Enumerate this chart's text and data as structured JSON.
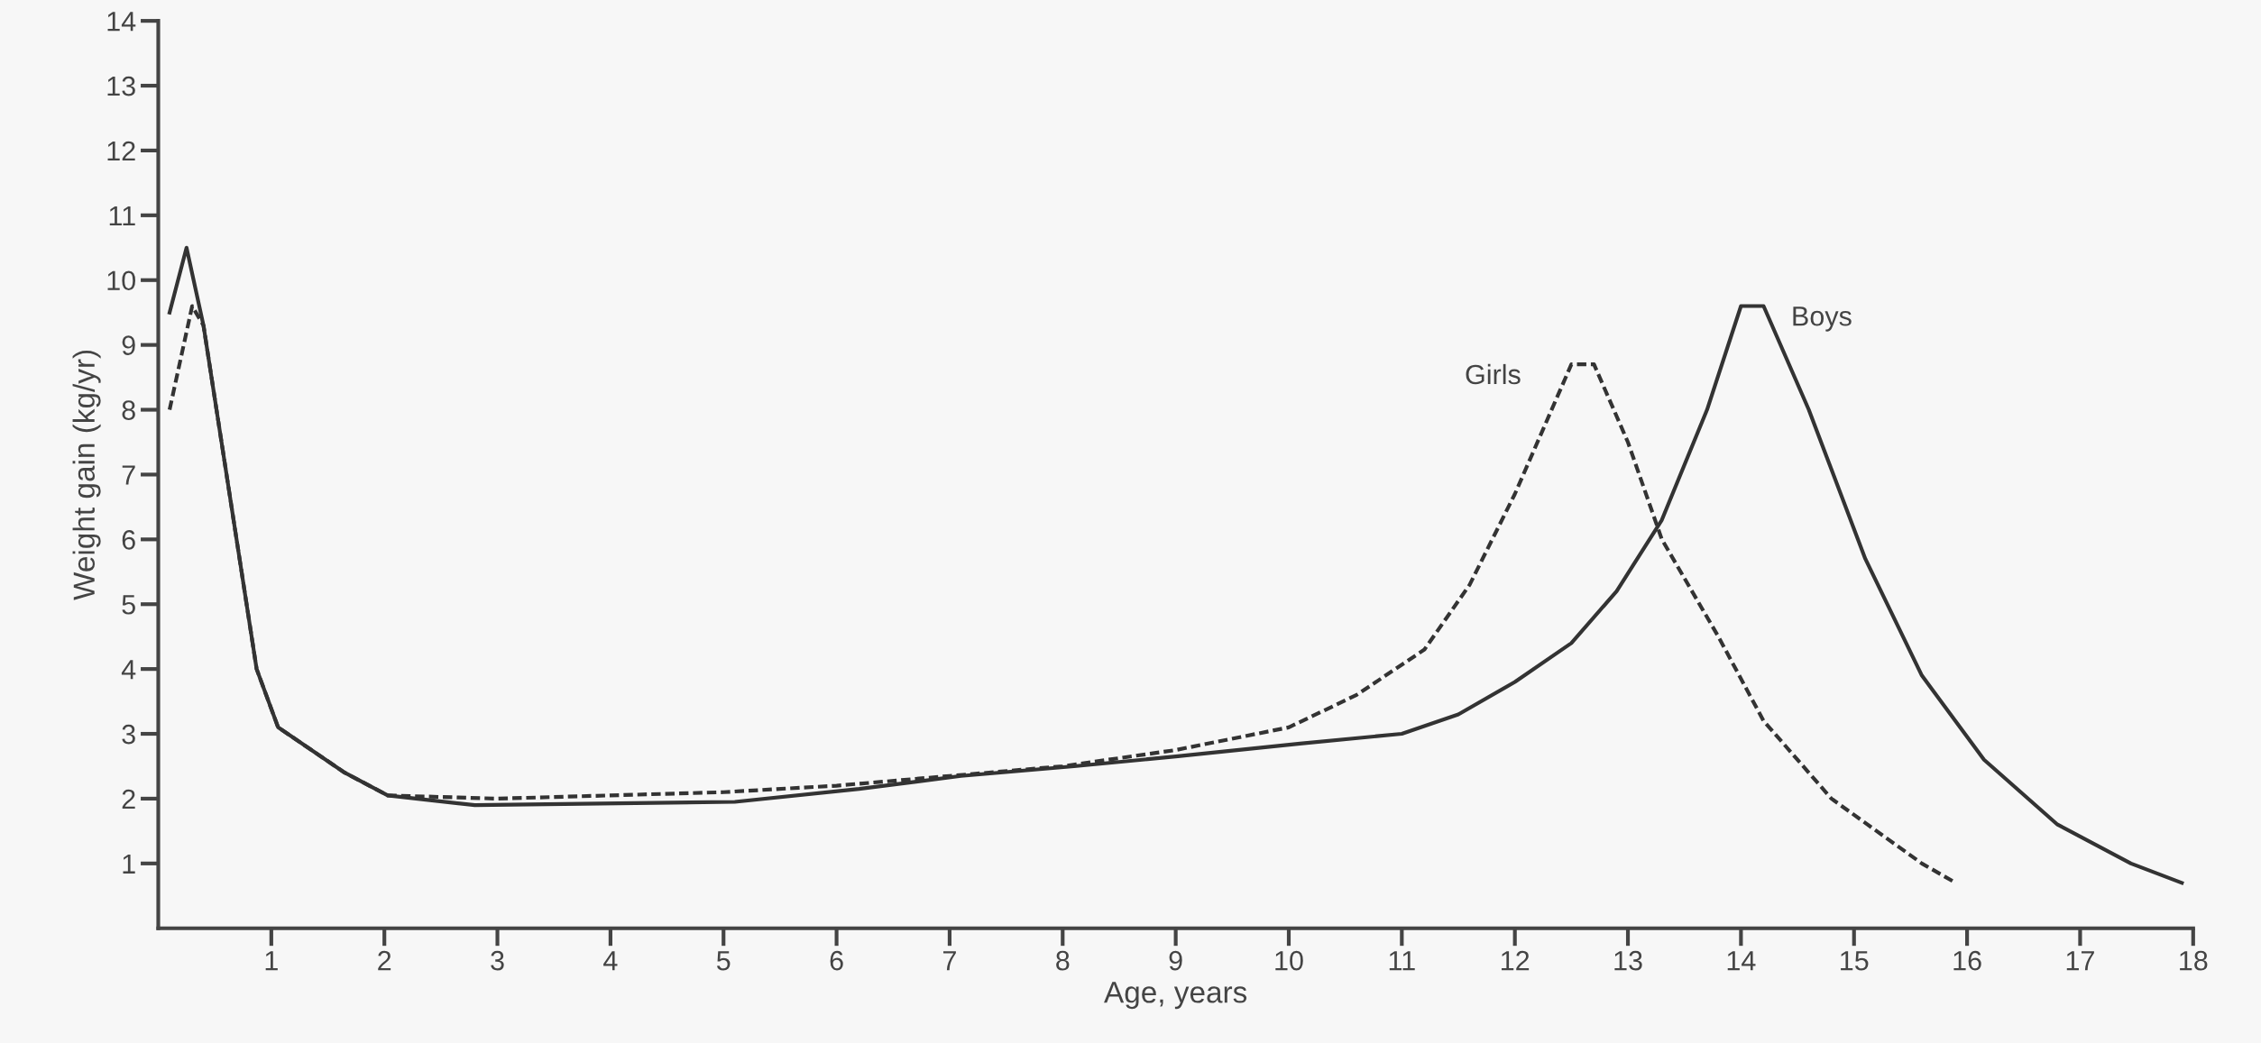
{
  "chart_data": {
    "type": "line",
    "xlabel": "Age, years",
    "ylabel": "Weight gain (kg/yr)",
    "xlim": [
      0,
      18
    ],
    "ylim": [
      0,
      14
    ],
    "xticks": [
      1,
      2,
      3,
      4,
      5,
      6,
      7,
      8,
      9,
      10,
      11,
      12,
      13,
      14,
      15,
      16,
      17,
      18
    ],
    "yticks": [
      1,
      2,
      3,
      4,
      5,
      6,
      7,
      8,
      9,
      10,
      11,
      12,
      13,
      14
    ],
    "grid": false,
    "legend": false,
    "marker": "none",
    "series": [
      {
        "name": "Boys",
        "color": "#333333",
        "line_style": "solid",
        "x": [
          0.1,
          0.25,
          0.4,
          0.87,
          1.06,
          1.65,
          2.03,
          2.8,
          5.1,
          6.2,
          7.1,
          8.1,
          9.0,
          10.1,
          11.0,
          11.5,
          12.0,
          12.5,
          12.9,
          13.3,
          13.7,
          14.0,
          14.2,
          14.6,
          15.1,
          15.6,
          16.15,
          16.8,
          17.45,
          17.9
        ],
        "values": [
          9.5,
          10.5,
          9.3,
          4.0,
          3.1,
          2.4,
          2.05,
          1.9,
          1.95,
          2.15,
          2.35,
          2.5,
          2.65,
          2.85,
          3.0,
          3.3,
          3.8,
          4.4,
          5.2,
          6.3,
          8.0,
          9.6,
          9.6,
          8.0,
          5.7,
          3.9,
          2.6,
          1.6,
          1.0,
          0.7
        ]
      },
      {
        "name": "Girls",
        "color": "#333333",
        "line_style": "dotted",
        "x": [
          0.1,
          0.3,
          0.4,
          0.87,
          1.06,
          1.65,
          2.03,
          3.0,
          5.0,
          6.0,
          7.0,
          8.0,
          9.0,
          10.0,
          10.6,
          11.2,
          11.6,
          12.0,
          12.5,
          12.7,
          13.0,
          13.3,
          13.8,
          14.2,
          14.8,
          15.2,
          15.6,
          15.9
        ],
        "values": [
          8.0,
          9.6,
          9.3,
          4.0,
          3.1,
          2.4,
          2.05,
          2.0,
          2.1,
          2.2,
          2.35,
          2.5,
          2.75,
          3.1,
          3.6,
          4.3,
          5.3,
          6.7,
          8.7,
          8.7,
          7.5,
          6.0,
          4.5,
          3.2,
          2.0,
          1.5,
          1.0,
          0.7
        ]
      }
    ]
  }
}
